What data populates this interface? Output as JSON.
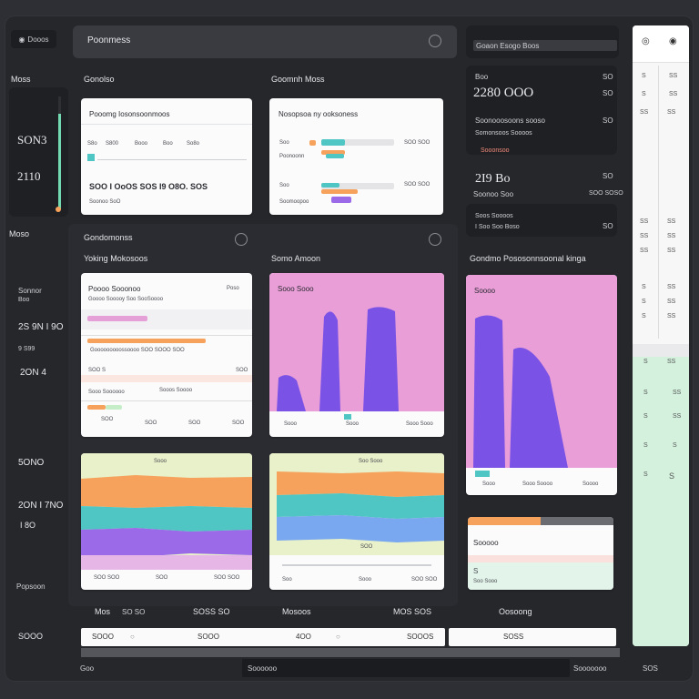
{
  "header": {
    "logo_label": "Dooos",
    "app_title": "Poonmess",
    "search_title": "Goaon Esogo Boos"
  },
  "left_labels": {
    "label_1": "Moss",
    "label_2": "Gonolso",
    "label_3": "Goomnh Moss",
    "value_1": "SON3",
    "value_2": "2110",
    "label_4": "Moso",
    "label_5": "Gondomonss",
    "label_6": "Yoking Mokosoos",
    "label_7": "Somo Amoon",
    "label_8": "Gondmo Pososonnsoonal kinga",
    "side_1": "Sonnor",
    "side_1b": "Boo",
    "side_2": "2S 9N I 9O",
    "side_2b": "9 S99",
    "side_3": "2ON 4",
    "side_4": "5ONO",
    "side_5": "2ON I 7NO",
    "side_6": "I 8O",
    "side_7": "Popsoon"
  },
  "cards_top": {
    "c1_title": "Pooomg Iosonsoonmoos",
    "c1_items": [
      "S8o",
      "S800",
      "Booo",
      "Boo",
      "So8o"
    ],
    "c1_value": "SOO I OoOS SOS I9 O8O. SOS",
    "c1_sub": "Soonoo SoO",
    "c2_title": "Nosopsoa ny ooksoness",
    "c2_r1": "Soo",
    "c2_r1_val": "SOO SOO",
    "c2_r2": "Poonoonn",
    "c2_r3": "Soo",
    "c2_r3_val": "SOO SOO",
    "c2_r4": "Soomoopoo"
  },
  "right_panel": {
    "row1_label": "Boo",
    "row1_value": "2280 OOO",
    "row1_sub": "Soonooosoons sooso",
    "row1_note": "Somonsoos Soooos",
    "row1_note2": "Sooonsoo",
    "row2_value": "2I9 Bo",
    "row2_sub": "Soonoo Soo",
    "row2_note": "Soos Soooos",
    "row2_right": "SOO SOSO",
    "row2_bottom": "I Soo Soo Boso",
    "side_nums": [
      "SO",
      "SO",
      "SO",
      "SO",
      "SO"
    ]
  },
  "cards_mid": {
    "m1_title": "Poooo Sooonoo",
    "m1_tag": "Poso",
    "m1_sub": "Goooo Sooooy Soo SooSoooo",
    "m1_row1": "Gooooooooossoooo SOO SOOO SOO",
    "m1_row2_a": "SOO S",
    "m1_row2_b": "SOO",
    "m1_row3": "Sooo Soooooo",
    "m1_row3_b": "Sooos Soooo",
    "m1_ticks": [
      "SOO",
      "SOO",
      "SOO",
      "SOO"
    ],
    "m2_title": "Sooo Sooo",
    "m2_ticks": [
      "Sooo",
      "Sooo",
      "Sooo Sooo"
    ],
    "m3_title": "Soooo",
    "m3_ticks": [
      "Sooo",
      "Sooo Soooo",
      "Soooo"
    ]
  },
  "cards_area": {
    "a1_top": "Sooo",
    "a1_ticks": [
      "SOO SOO",
      "SOO",
      "SOO SOO"
    ],
    "a2_top": "Soo Sooo",
    "a2_ticks": [
      "Soo",
      "Sooo",
      "SOO SOO"
    ],
    "a2_mid": "SOO"
  },
  "small_card": {
    "title": "Sooooo",
    "row": "S",
    "note": "Soo Sooo"
  },
  "bottom_row": {
    "h1": "Mos",
    "h1b": "SO SO",
    "h2": "SOSS SO",
    "h3": "Mosoos",
    "h4": "MOS SOS",
    "h5": "Oosoong",
    "in1": "SOOO",
    "in2": "SOOO",
    "in3": "4OO",
    "in4": "SOOOS",
    "in5": "SOSS",
    "footer_left": "Goo",
    "footer_center": "Soooooo",
    "footer_right": "Sooooooo",
    "footer_right2": "SOS"
  },
  "scroll_nums": {
    "top_a": "S",
    "top_b": "SS",
    "r1a": "S",
    "r1b": "SS",
    "r2a": "SS",
    "r2b": "SS",
    "r3a": "SS",
    "r3b": "SS",
    "r4a": "SS",
    "r4b": "SS",
    "r5a": "SS",
    "r5b": "SS",
    "r6a": "S",
    "r6b": "SS",
    "r7a": "S",
    "r7b": "SS",
    "r8a": "S",
    "r8b": "SS",
    "g1a": "S",
    "g1b": "SS",
    "g2a": "S",
    "g2b": "SS",
    "g3a": "S",
    "g3b": "SS",
    "g4a": "S",
    "g4b": "S",
    "g5a": "S",
    "g5b": "S"
  },
  "colors": {
    "pink": "#e99ed8",
    "purple": "#7b52e6",
    "orange": "#f6a25c",
    "teal": "#4fc6c4",
    "mint": "#d3f1dd"
  }
}
